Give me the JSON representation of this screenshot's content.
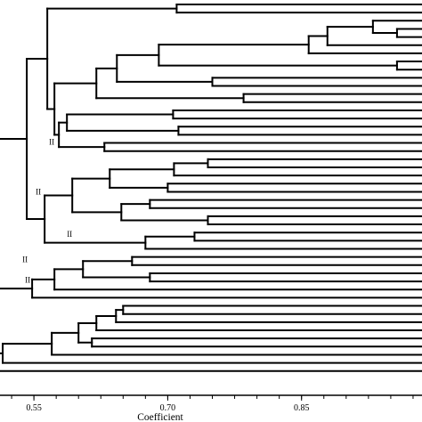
{
  "chart_data": {
    "type": "dendrogram",
    "xlabel": "Coefficient",
    "ticks": [
      0.55,
      0.7,
      0.85
    ],
    "tick_labels": [
      "0.55",
      "0.70",
      "0.85"
    ],
    "xlim": [
      0.5,
      0.995
    ],
    "leaf_count": 46,
    "cluster_labels": [
      {
        "text": "II",
        "x": 0.575
      },
      {
        "text": "II",
        "x": 0.56
      },
      {
        "text": "II",
        "x": 0.595
      },
      {
        "text": "II",
        "x": 0.545
      },
      {
        "text": "II",
        "x": 0.548
      }
    ],
    "tree": {
      "h": 0.5,
      "c": [
        {
          "h": 0.51,
          "c": [
            {
              "h": 0.542,
              "c": [
                {
                  "h": 0.565,
                  "c": [
                    {
                      "h": 0.71,
                      "c": [
                        {
                          "leaf": 1
                        },
                        {
                          "leaf": 2
                        }
                      ]
                    },
                    {
                      "h": 0.573,
                      "c": [
                        {
                          "h": 0.62,
                          "c": [
                            {
                              "h": 0.643,
                              "c": [
                                {
                                  "h": 0.69,
                                  "c": [
                                    {
                                      "h": 0.858,
                                      "c": [
                                        {
                                          "h": 0.879,
                                          "c": [
                                            {
                                              "h": 0.93,
                                              "c": [
                                                {
                                                  "leaf": 3
                                                },
                                                {
                                                  "h": 0.957,
                                                  "c": [
                                                    {
                                                      "leaf": 4
                                                    },
                                                    {
                                                      "leaf": 5
                                                    }
                                                  ]
                                                }
                                              ]
                                            },
                                            {
                                              "leaf": 6
                                            }
                                          ]
                                        },
                                        {
                                          "leaf": 7
                                        }
                                      ]
                                    },
                                    {
                                      "h": 0.957,
                                      "c": [
                                        {
                                          "leaf": 8
                                        },
                                        {
                                          "leaf": 9
                                        }
                                      ]
                                    }
                                  ]
                                },
                                {
                                  "h": 0.75,
                                  "c": [
                                    {
                                      "leaf": 10
                                    },
                                    {
                                      "leaf": 11
                                    }
                                  ]
                                }
                              ]
                            },
                            {
                              "h": 0.785,
                              "c": [
                                {
                                  "leaf": 12
                                },
                                {
                                  "leaf": 13
                                }
                              ]
                            }
                          ]
                        },
                        {
                          "h": 0.578,
                          "c": [
                            {
                              "h": 0.587,
                              "c": [
                                {
                                  "h": 0.706,
                                  "c": [
                                    {
                                      "leaf": 14
                                    },
                                    {
                                      "leaf": 15
                                    }
                                  ]
                                },
                                {
                                  "h": 0.712,
                                  "c": [
                                    {
                                      "leaf": 16
                                    },
                                    {
                                      "leaf": 17
                                    }
                                  ]
                                }
                              ]
                            },
                            {
                              "h": 0.629,
                              "c": [
                                {
                                  "leaf": 18
                                },
                                {
                                  "leaf": 19
                                }
                              ]
                            }
                          ]
                        }
                      ]
                    }
                  ]
                },
                {
                  "h": 0.562,
                  "c": [
                    {
                      "h": 0.593,
                      "c": [
                        {
                          "h": 0.635,
                          "c": [
                            {
                              "h": 0.707,
                              "c": [
                                {
                                  "h": 0.745,
                                  "c": [
                                    {
                                      "leaf": 20
                                    },
                                    {
                                      "leaf": 21
                                    }
                                  ]
                                },
                                {
                                  "leaf": 22
                                }
                              ]
                            },
                            {
                              "h": 0.7,
                              "c": [
                                {
                                  "leaf": 23
                                },
                                {
                                  "leaf": 24
                                }
                              ]
                            }
                          ]
                        },
                        {
                          "h": 0.648,
                          "c": [
                            {
                              "h": 0.68,
                              "c": [
                                {
                                  "leaf": 25
                                },
                                {
                                  "leaf": 26
                                }
                              ]
                            },
                            {
                              "h": 0.745,
                              "c": [
                                {
                                  "leaf": 27
                                },
                                {
                                  "leaf": 28
                                }
                              ]
                            }
                          ]
                        }
                      ]
                    },
                    {
                      "h": 0.675,
                      "c": [
                        {
                          "h": 0.73,
                          "c": [
                            {
                              "leaf": 29
                            },
                            {
                              "leaf": 30
                            }
                          ]
                        },
                        {
                          "leaf": 31
                        }
                      ]
                    }
                  ]
                }
              ]
            },
            {
              "h": 0.548,
              "c": [
                {
                  "h": 0.573,
                  "c": [
                    {
                      "h": 0.605,
                      "c": [
                        {
                          "h": 0.66,
                          "c": [
                            {
                              "leaf": 32
                            },
                            {
                              "leaf": 33
                            }
                          ]
                        },
                        {
                          "h": 0.68,
                          "c": [
                            {
                              "leaf": 34
                            },
                            {
                              "leaf": 35
                            }
                          ]
                        }
                      ]
                    },
                    {
                      "leaf": 36
                    }
                  ]
                },
                {
                  "leaf": 37
                }
              ]
            }
          ]
        },
        {
          "h": 0.515,
          "c": [
            {
              "h": 0.57,
              "c": [
                {
                  "h": 0.6,
                  "c": [
                    {
                      "h": 0.62,
                      "c": [
                        {
                          "h": 0.642,
                          "c": [
                            {
                              "h": 0.65,
                              "c": [
                                {
                                  "leaf": 38
                                },
                                {
                                  "leaf": 39
                                }
                              ]
                            },
                            {
                              "leaf": 40
                            }
                          ]
                        },
                        {
                          "leaf": 41
                        }
                      ]
                    },
                    {
                      "h": 0.615,
                      "c": [
                        {
                          "leaf": 42
                        },
                        {
                          "leaf": 43
                        }
                      ]
                    }
                  ]
                },
                {
                  "leaf": 44
                }
              ]
            },
            {
              "leaf": 45
            }
          ]
        }
      ]
    },
    "tail_leaf": 46
  }
}
